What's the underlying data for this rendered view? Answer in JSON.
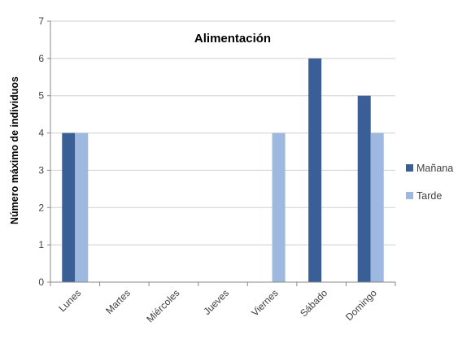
{
  "chart_data": {
    "type": "bar",
    "title": "Alimentación",
    "xlabel": "",
    "ylabel": "Número máximo de individuos",
    "categories": [
      "Lunes",
      "Martes",
      "Miércoles",
      "Jueves",
      "Viernes",
      "Sábado",
      "Domingo"
    ],
    "series": [
      {
        "name": "Mañana",
        "values": [
          4,
          0,
          0,
          0,
          0,
          6,
          5
        ],
        "color": "#3a5f96"
      },
      {
        "name": "Tarde",
        "values": [
          4,
          0,
          0,
          0,
          4,
          0,
          4
        ],
        "color": "#9db9e0"
      }
    ],
    "ylim": [
      0,
      7
    ],
    "yticks": [
      "0",
      "1",
      "2",
      "3",
      "4",
      "5",
      "6",
      "7"
    ],
    "grid": true,
    "legend": "right"
  }
}
